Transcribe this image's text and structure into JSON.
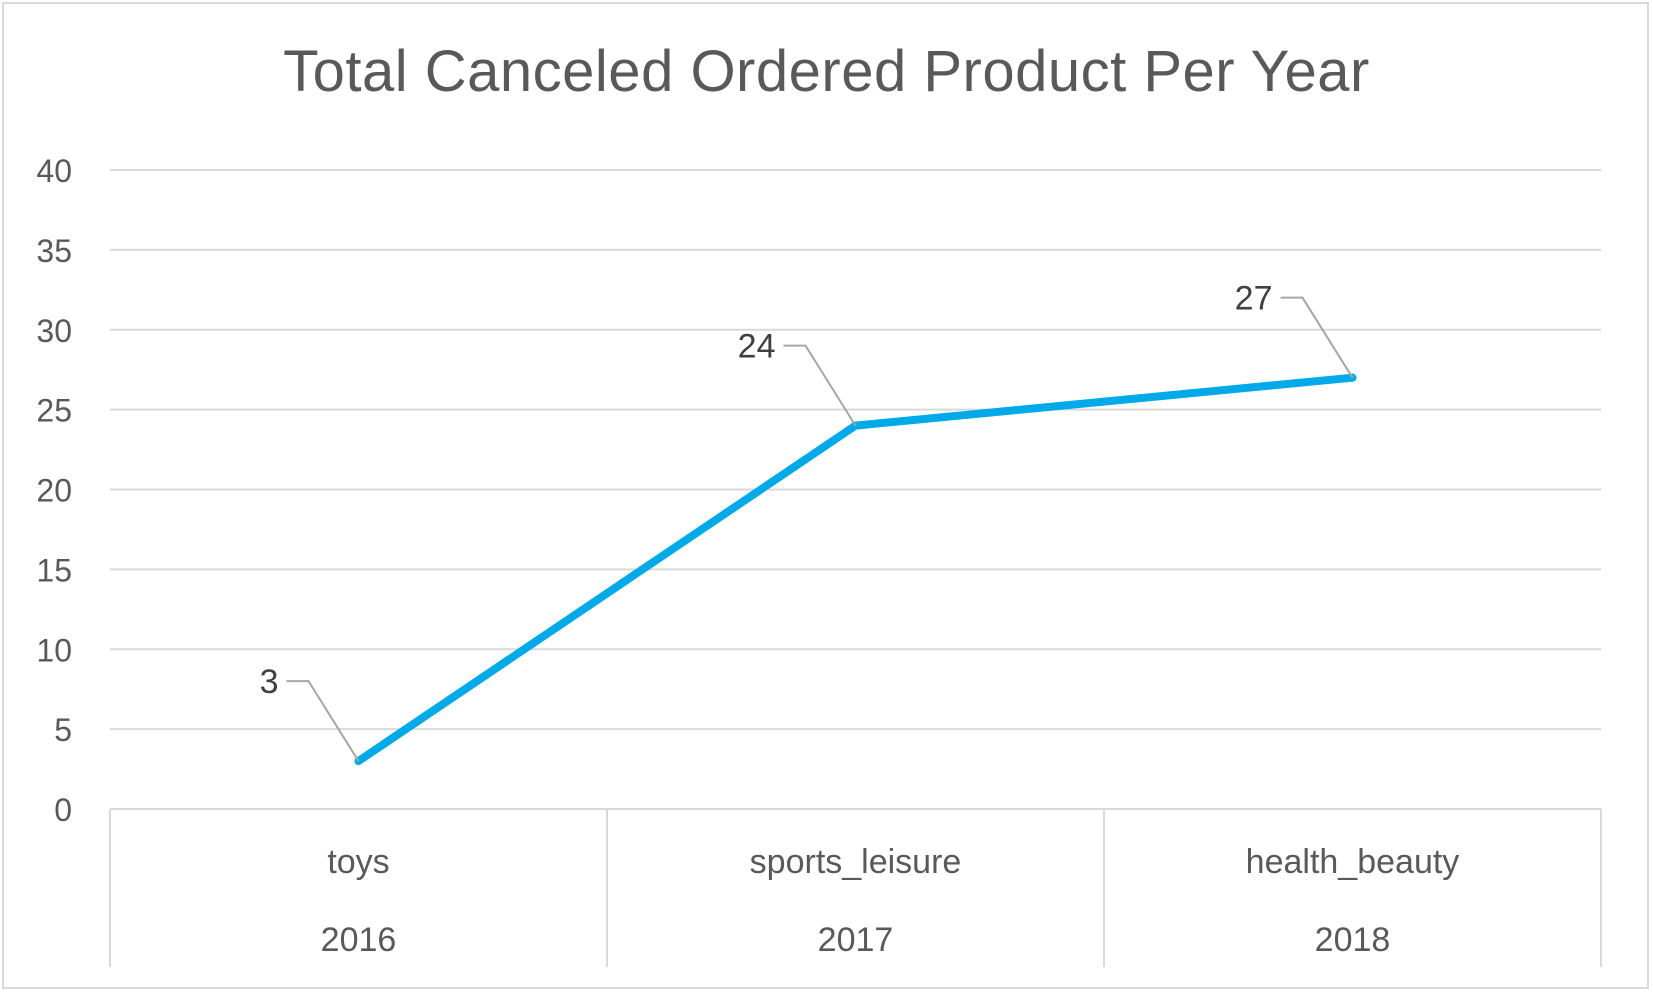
{
  "chart_data": {
    "type": "line",
    "title": "Total Canceled Ordered Product Per Year",
    "categories": [
      {
        "category": "toys",
        "year": "2016"
      },
      {
        "category": "sports_leisure",
        "year": "2017"
      },
      {
        "category": "health_beauty",
        "year": "2018"
      }
    ],
    "series": [
      {
        "values": [
          3,
          24,
          27
        ]
      }
    ],
    "data_labels": [
      "3",
      "24",
      "27"
    ],
    "y_ticks": [
      "0",
      "5",
      "10",
      "15",
      "20",
      "25",
      "30",
      "35",
      "40"
    ],
    "ylim": [
      0,
      40
    ],
    "grid": true,
    "legend": "none",
    "line_color": "#00a9e8",
    "grid_color": "#d9d9d9",
    "text_color": "#595959",
    "label_color": "#404040"
  }
}
